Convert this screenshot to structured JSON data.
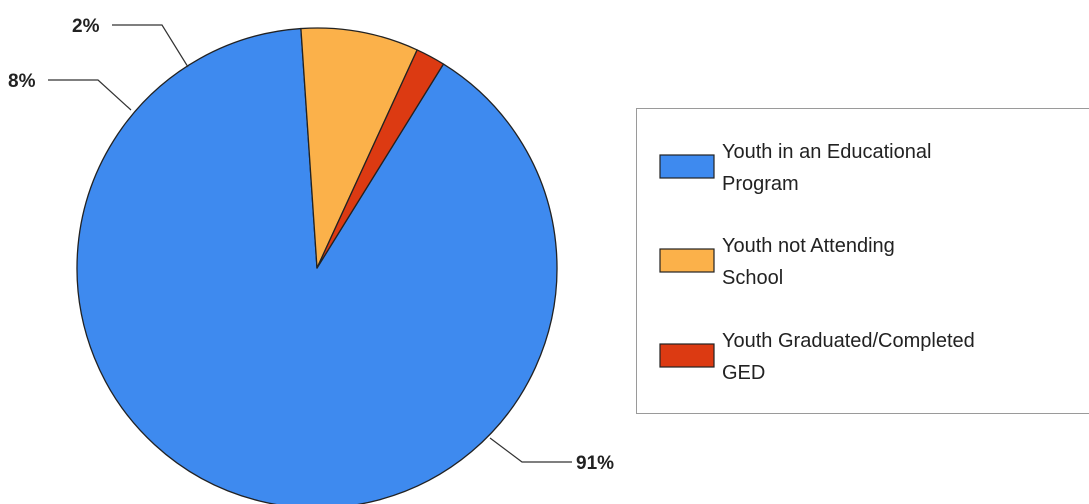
{
  "chart_data": {
    "type": "pie",
    "title": "",
    "slices": [
      {
        "label": "Youth in an Educational Program",
        "value": 91,
        "display": "91%",
        "color": "#3e8aef"
      },
      {
        "label": "Youth not Attending School",
        "value": 8,
        "display": "8%",
        "color": "#fbb14a"
      },
      {
        "label": "Youth Graduated/Completed GED",
        "value": 2,
        "display": "2%",
        "color": "#dc3a12"
      }
    ],
    "legend": {
      "placement": "right",
      "entries": [
        {
          "line1": "Youth in an Educational",
          "line2": "Program"
        },
        {
          "line1": "Youth not Attending",
          "line2": "School"
        },
        {
          "line1": "Youth Graduated/Completed",
          "line2": "GED"
        }
      ]
    }
  }
}
